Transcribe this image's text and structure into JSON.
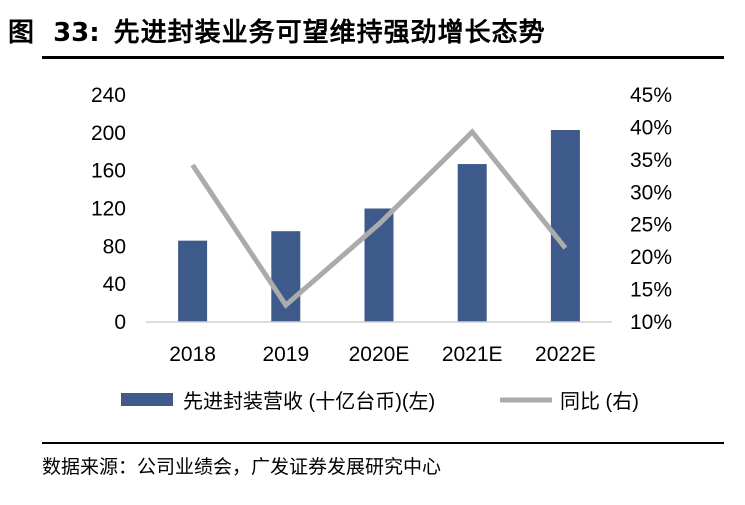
{
  "header": {
    "figure_label": "图",
    "figure_number": "33:",
    "title": "先进封装业务可望维持强劲增长态势"
  },
  "chart_data": {
    "type": "bar",
    "categories": [
      "2018",
      "2019",
      "2020E",
      "2021E",
      "2022E"
    ],
    "series": [
      {
        "name": "先进封装营收 (十亿台币)(左)",
        "type": "bar",
        "axis": "left",
        "color": "#3d5a8a",
        "values": [
          86,
          96,
          120,
          167,
          203
        ]
      },
      {
        "name": "同比 (右)",
        "type": "line",
        "axis": "right",
        "color": "#ababab",
        "values": [
          34.2,
          12.6,
          25.1,
          39.3,
          21.4
        ]
      }
    ],
    "left_axis": {
      "min": 0,
      "max": 240,
      "ticks": [
        0,
        40,
        80,
        120,
        160,
        200,
        240
      ]
    },
    "right_axis": {
      "min": 10,
      "max": 45,
      "ticks": [
        "10%",
        "15%",
        "20%",
        "25%",
        "30%",
        "35%",
        "40%",
        "45%"
      ]
    },
    "legend_position": "bottom",
    "grid": false
  },
  "footer": {
    "source": "数据来源：公司业绩会，广发证券发展研究中心"
  }
}
